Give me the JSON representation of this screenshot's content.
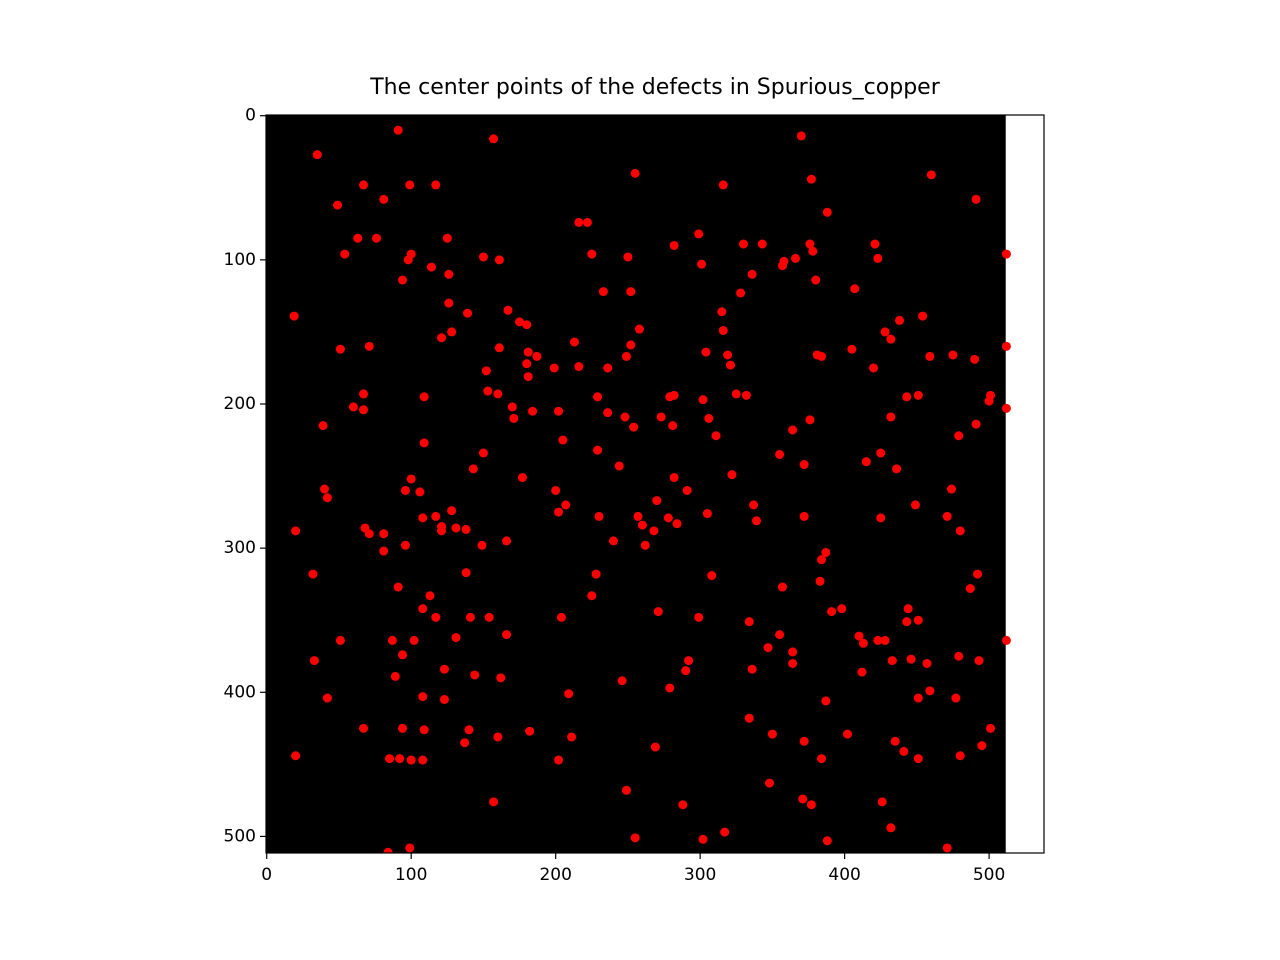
{
  "chart_data": {
    "type": "scatter",
    "title": "The center points of the defects in Spurious_copper",
    "background_image": {
      "width": 512,
      "height": 512,
      "color": "#000000"
    },
    "color": "#ff0000",
    "xlim": [
      -0.5,
      538
    ],
    "ylim": [
      511.5,
      -0.5
    ],
    "xticks": [
      0,
      100,
      200,
      300,
      400,
      500
    ],
    "yticks": [
      0,
      100,
      200,
      300,
      400,
      500
    ],
    "x": [
      91,
      35,
      157,
      370,
      255,
      460,
      377,
      316,
      67,
      99,
      117,
      81,
      49,
      491,
      388,
      216,
      222,
      63,
      76,
      125,
      299,
      343,
      330,
      282,
      376,
      421,
      378,
      54,
      100,
      150,
      225,
      250,
      366,
      358,
      161,
      98,
      301,
      423,
      512,
      114,
      357,
      126,
      336,
      94,
      380,
      233,
      252,
      328,
      407,
      126,
      167,
      315,
      139,
      19,
      454,
      438,
      175,
      180,
      258,
      316,
      128,
      428,
      121,
      432,
      213,
      252,
      71,
      161,
      512,
      51,
      304,
      405,
      181,
      187,
      249,
      319,
      381,
      384,
      459,
      475,
      490,
      180,
      321,
      199,
      216,
      236,
      420,
      152,
      181,
      153,
      160,
      229,
      279,
      282,
      325,
      332,
      302,
      443,
      451,
      501,
      500,
      109,
      67,
      60,
      67,
      170,
      184,
      202,
      236,
      512,
      171,
      248,
      273,
      306,
      376,
      432,
      254,
      281,
      39,
      491,
      364,
      311,
      479,
      205,
      109,
      150,
      229,
      355,
      425,
      244,
      372,
      415,
      436,
      143,
      177,
      100,
      282,
      322,
      40,
      42,
      96,
      106,
      200,
      291,
      474,
      270,
      337,
      449,
      207,
      202,
      128,
      108,
      117,
      230,
      305,
      372,
      425,
      471,
      257,
      339,
      278,
      284,
      260,
      68,
      121,
      131,
      138,
      268,
      20,
      121,
      71,
      81,
      480,
      166,
      240,
      262,
      149,
      96,
      81,
      387,
      384,
      32,
      138,
      228,
      308,
      492,
      357,
      91,
      383,
      487,
      225,
      113,
      108,
      398,
      391,
      271,
      117,
      204,
      141,
      154,
      299,
      443,
      451,
      334,
      444,
      166,
      355,
      51,
      87,
      102,
      131,
      410,
      423,
      428,
      512,
      413,
      347,
      364,
      94,
      292,
      33,
      433,
      446,
      457,
      479,
      493,
      364,
      123,
      290,
      336,
      412,
      89,
      144,
      162,
      246,
      279,
      459,
      209,
      108,
      123,
      42,
      451,
      477,
      387,
      334,
      67,
      94,
      109,
      140,
      182,
      501,
      160,
      211,
      350,
      402,
      435,
      137,
      372,
      269,
      495,
      441,
      20,
      480,
      85,
      92,
      100,
      108,
      202,
      384,
      451,
      348,
      249,
      157,
      371,
      377,
      288,
      426,
      317,
      432,
      255,
      302,
      388,
      99,
      471,
      84
    ],
    "y": [
      10,
      27,
      16,
      14,
      40,
      41,
      44,
      48,
      48,
      48,
      48,
      58,
      62,
      58,
      67,
      74,
      74,
      85,
      85,
      85,
      82,
      89,
      89,
      90,
      89,
      89,
      94,
      96,
      96,
      98,
      96,
      98,
      99,
      101,
      100,
      100,
      103,
      99,
      96,
      105,
      104,
      110,
      110,
      114,
      114,
      122,
      122,
      123,
      120,
      130,
      135,
      136,
      137,
      139,
      139,
      142,
      143,
      145,
      148,
      149,
      150,
      150,
      154,
      155,
      157,
      159,
      160,
      161,
      160,
      162,
      164,
      162,
      164,
      167,
      167,
      166,
      166,
      167,
      167,
      166,
      169,
      172,
      173,
      175,
      174,
      175,
      175,
      177,
      181,
      191,
      193,
      195,
      195,
      194,
      193,
      194,
      197,
      195,
      194,
      194,
      198,
      195,
      193,
      202,
      204,
      202,
      205,
      205,
      206,
      203,
      210,
      209,
      209,
      210,
      211,
      209,
      216,
      215,
      215,
      214,
      218,
      222,
      222,
      225,
      227,
      234,
      232,
      235,
      234,
      243,
      242,
      240,
      245,
      245,
      251,
      252,
      251,
      249,
      259,
      265,
      260,
      261,
      260,
      260,
      259,
      267,
      270,
      270,
      270,
      275,
      274,
      279,
      278,
      278,
      276,
      278,
      279,
      278,
      278,
      281,
      279,
      283,
      284,
      286,
      285,
      286,
      287,
      288,
      288,
      288,
      290,
      290,
      288,
      295,
      295,
      298,
      298,
      298,
      302,
      303,
      308,
      318,
      317,
      318,
      319,
      318,
      327,
      327,
      323,
      328,
      333,
      333,
      342,
      342,
      344,
      344,
      348,
      348,
      348,
      348,
      348,
      351,
      350,
      351,
      342,
      360,
      360,
      364,
      364,
      364,
      362,
      361,
      364,
      364,
      364,
      366,
      369,
      372,
      374,
      378,
      378,
      378,
      377,
      380,
      375,
      378,
      380,
      384,
      385,
      384,
      386,
      389,
      388,
      390,
      392,
      397,
      399,
      401,
      403,
      405,
      404,
      404,
      404,
      406,
      418,
      425,
      425,
      426,
      426,
      427,
      425,
      431,
      431,
      429,
      429,
      434,
      435,
      434,
      438,
      437,
      441,
      444,
      444,
      446,
      446,
      447,
      447,
      447,
      446,
      446,
      463,
      468,
      476,
      474,
      478,
      478,
      476,
      497,
      494,
      501,
      502,
      503,
      508,
      508,
      511
    ]
  }
}
